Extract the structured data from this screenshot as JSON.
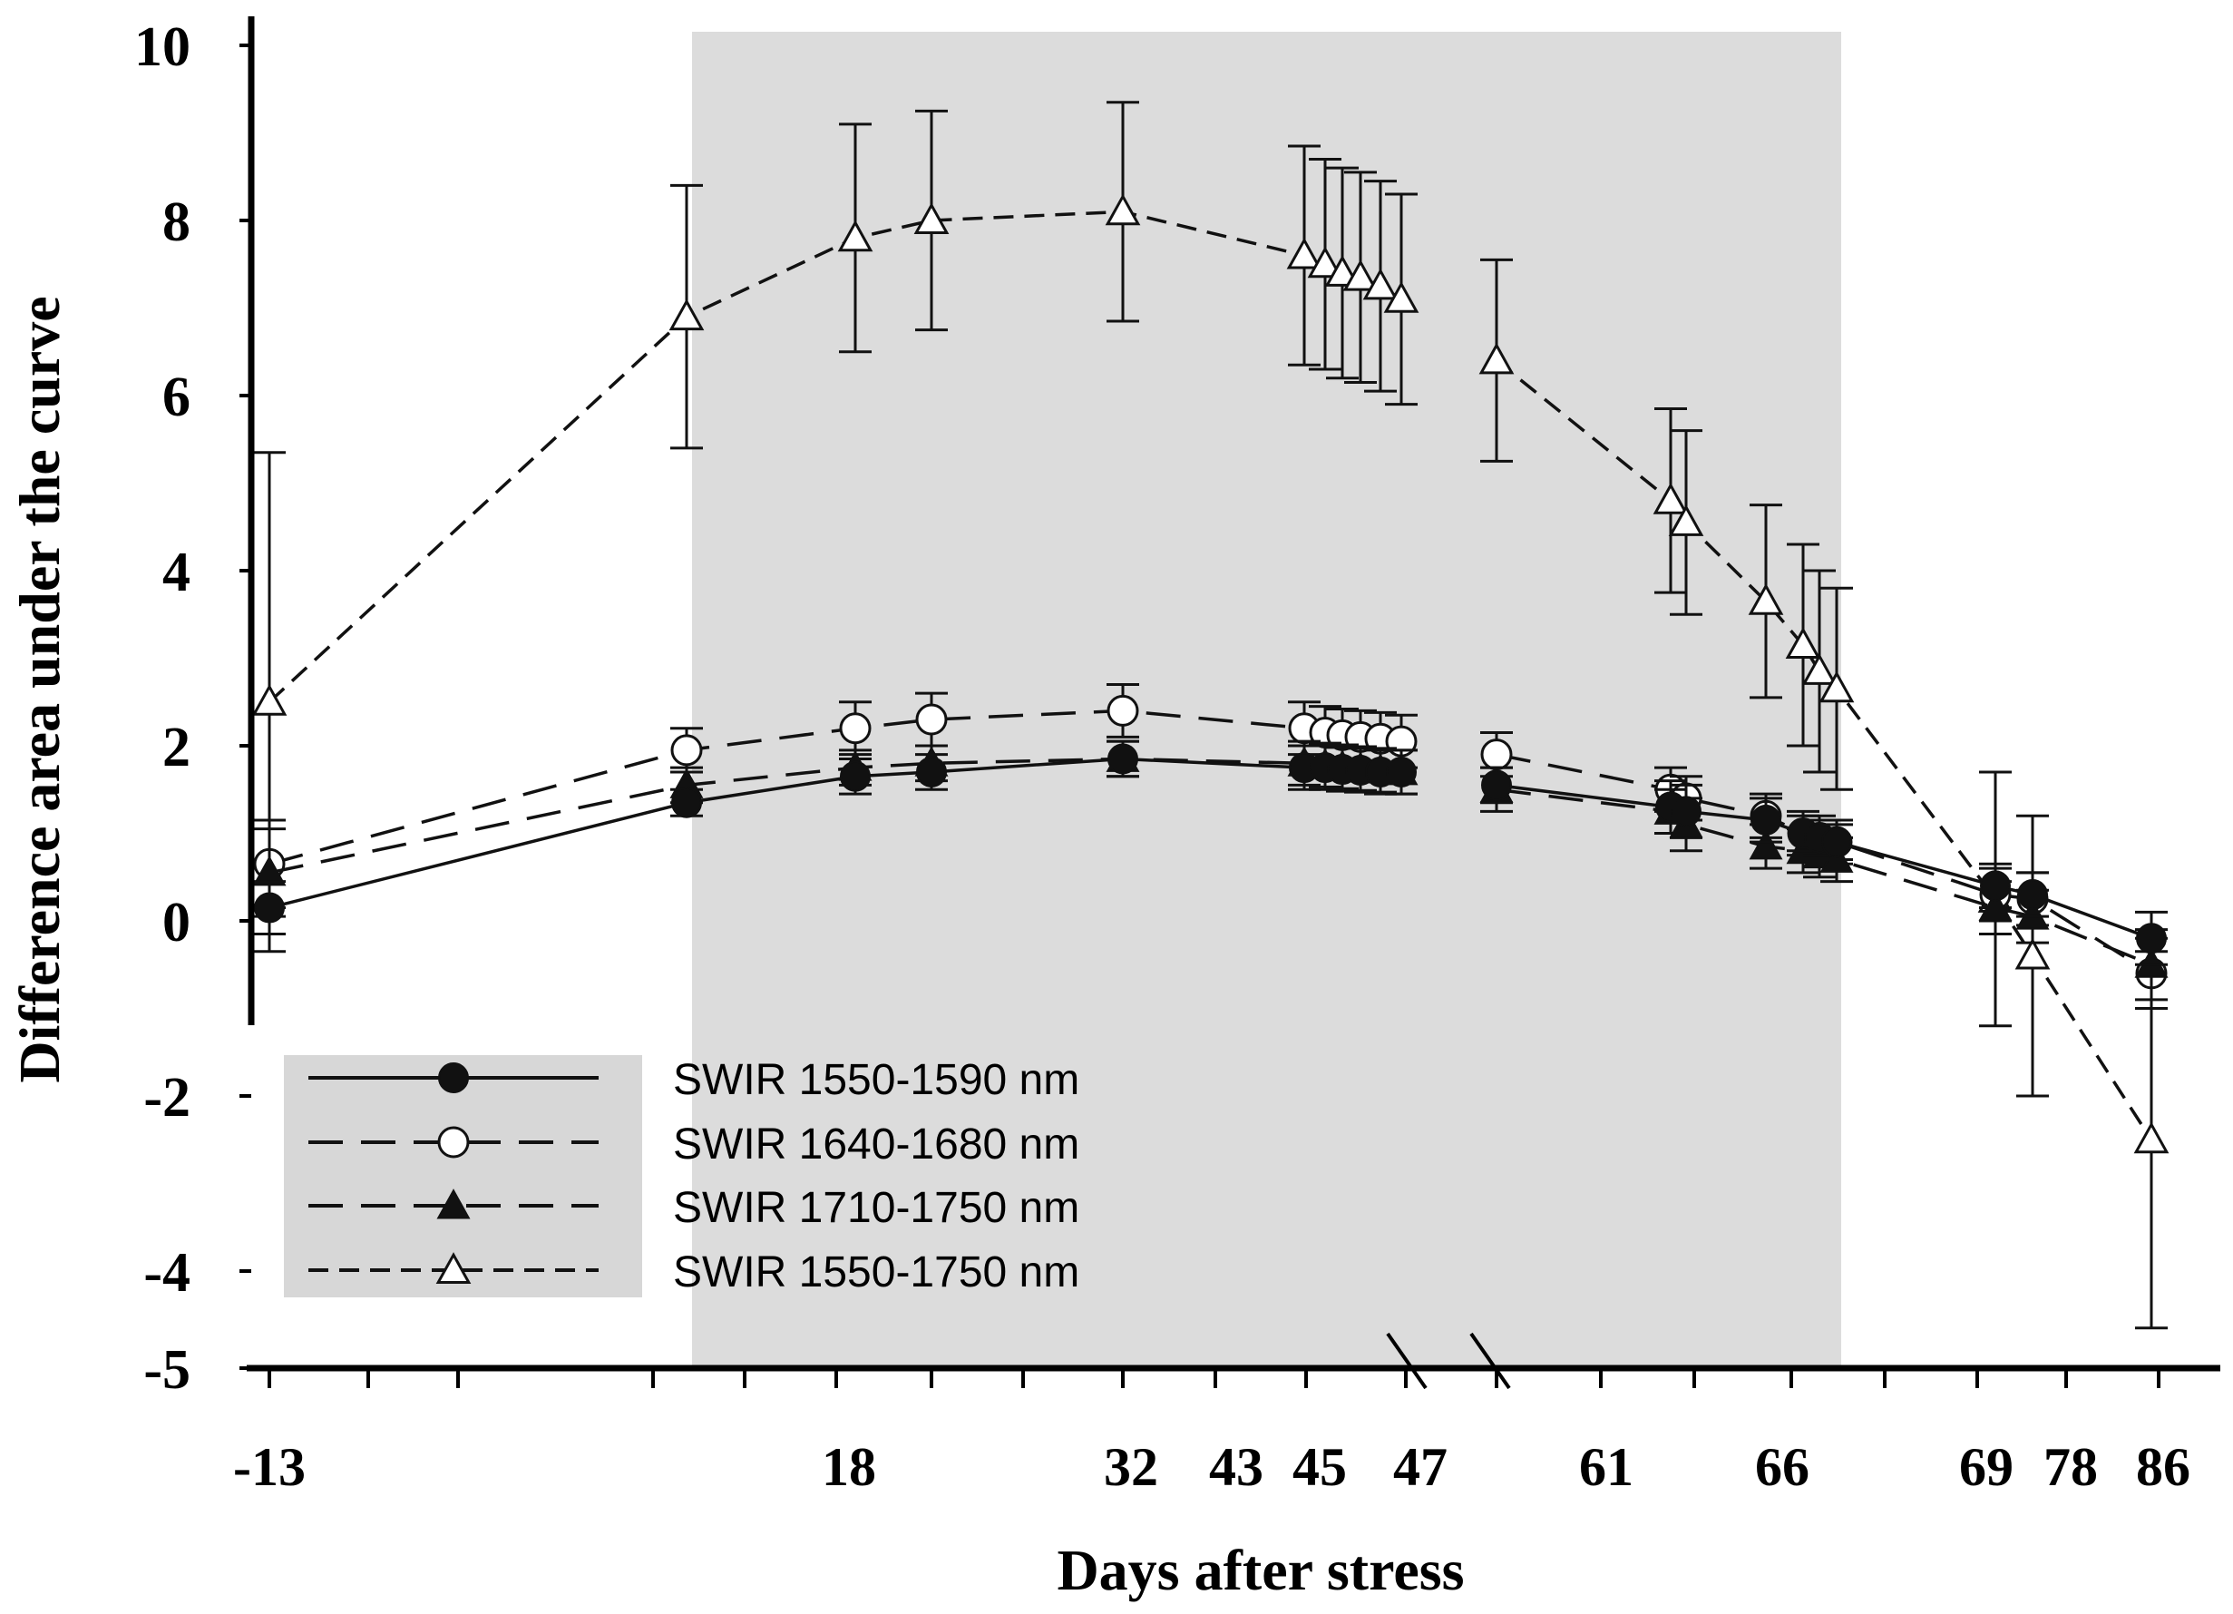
{
  "chart_data": {
    "type": "line",
    "xlabel": "Days after stress",
    "ylabel": "Difference area under the curve",
    "ylim": [
      -5,
      10
    ],
    "y_ticks": [
      "10",
      "8",
      "6",
      "4",
      "2",
      "0",
      "-2",
      "-4",
      "-5"
    ],
    "x_tick_labels": [
      "-13",
      "18",
      "32",
      "43",
      "45",
      "47",
      "61",
      "66",
      "69",
      "78",
      "86"
    ],
    "shaded_region": {
      "from_point_index": 1,
      "to_point_index": 18,
      "color": "#dcdcdc"
    },
    "axis_break": "between points 12 and 13",
    "colors": {
      "axis": "#000000",
      "line": "#111111",
      "legend_bg": "#d7d7d7",
      "shade": "#dcdcdc"
    },
    "series": [
      {
        "name": "SWIR 1550-1590 nm",
        "marker": "filled-circle",
        "line_style": "solid",
        "values": [
          0.15,
          1.35,
          1.65,
          1.7,
          1.85,
          1.75,
          1.75,
          1.73,
          1.72,
          1.7,
          1.7,
          1.55,
          1.3,
          1.25,
          1.15,
          1.0,
          0.95,
          0.9,
          0.4,
          0.3,
          -0.2
        ],
        "errors": [
          0.3,
          0.15,
          0.2,
          0.2,
          0.2,
          0.25,
          0.25,
          0.25,
          0.25,
          0.25,
          0.25,
          0.2,
          0.3,
          0.3,
          0.25,
          0.2,
          0.2,
          0.2,
          0.25,
          0.25,
          0.3
        ]
      },
      {
        "name": "SWIR 1640-1680 nm",
        "marker": "open-circle",
        "line_style": "long-dash",
        "values": [
          0.65,
          1.95,
          2.2,
          2.3,
          2.4,
          2.2,
          2.15,
          2.12,
          2.1,
          2.08,
          2.05,
          1.9,
          1.5,
          1.4,
          1.2,
          1.0,
          0.95,
          0.9,
          0.3,
          0.25,
          -0.6
        ],
        "errors": [
          0.5,
          0.25,
          0.3,
          0.3,
          0.3,
          0.3,
          0.3,
          0.3,
          0.3,
          0.3,
          0.3,
          0.25,
          0.25,
          0.25,
          0.25,
          0.25,
          0.25,
          0.25,
          0.3,
          0.3,
          0.4
        ]
      },
      {
        "name": "SWIR 1710-1750 nm",
        "marker": "filled-triangle",
        "line_style": "long-dash",
        "values": [
          0.55,
          1.55,
          1.75,
          1.8,
          1.85,
          1.8,
          1.78,
          1.76,
          1.74,
          1.72,
          1.7,
          1.5,
          1.25,
          1.1,
          0.85,
          0.8,
          0.75,
          0.7,
          0.15,
          0.05,
          -0.5
        ],
        "errors": [
          0.5,
          0.2,
          0.2,
          0.2,
          0.2,
          0.25,
          0.25,
          0.25,
          0.25,
          0.25,
          0.25,
          0.25,
          0.25,
          0.3,
          0.25,
          0.25,
          0.25,
          0.25,
          0.3,
          0.3,
          0.4
        ]
      },
      {
        "name": "SWIR 1550-1750 nm",
        "marker": "open-triangle",
        "line_style": "short-dash",
        "values": [
          2.5,
          6.9,
          7.8,
          8.0,
          8.1,
          7.6,
          7.5,
          7.4,
          7.35,
          7.25,
          7.1,
          6.4,
          4.8,
          4.55,
          3.65,
          3.15,
          2.85,
          2.65,
          0.25,
          -0.4,
          -2.5
        ],
        "errors": [
          2.85,
          1.5,
          1.3,
          1.25,
          1.25,
          1.25,
          1.2,
          1.2,
          1.2,
          1.2,
          1.2,
          1.15,
          1.05,
          1.05,
          1.1,
          1.15,
          1.15,
          1.15,
          1.45,
          1.6,
          2.15
        ]
      }
    ]
  }
}
